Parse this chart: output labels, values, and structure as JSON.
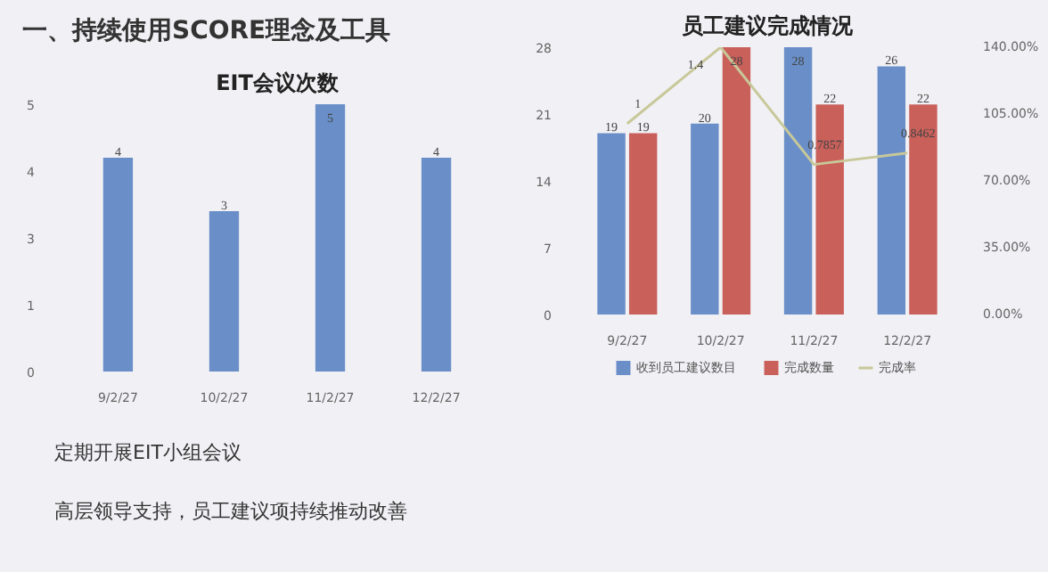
{
  "chart_data": [
    {
      "type": "bar",
      "title": "EIT会议次数",
      "categories": [
        "9/2/27",
        "10/2/27",
        "11/2/27",
        "12/2/27"
      ],
      "series": [
        {
          "color": "#6a8fc8",
          "values": [
            4,
            3,
            5,
            4
          ]
        }
      ],
      "ylim": [
        0,
        5
      ],
      "yticks": [
        0,
        {
          "value": 1.25,
          "label": "1"
        },
        {
          "value": 2.5,
          "label": "3"
        },
        {
          "value": 3.75,
          "label": "4"
        },
        5
      ],
      "data_labels": true,
      "grid": false,
      "legend": false,
      "annotations": [
        "一、持续使用SCORE理念及工具",
        "定期开展EIT小组会议",
        "高层领导支持，员工建议项持续推动改善"
      ]
    },
    {
      "type": "bar",
      "title": "员工建议完成情况",
      "categories": [
        "9/2/27",
        "10/2/27",
        "11/2/27",
        "12/2/27"
      ],
      "series": [
        {
          "name": "收到员工建议数目",
          "color": "#6a8fc8",
          "values": [
            19,
            20,
            28,
            26
          ]
        },
        {
          "name": "完成数量",
          "color": "#c9605a",
          "values": [
            19,
            28,
            22,
            22
          ]
        },
        {
          "name": "完成率",
          "type": "line",
          "axis": "y2",
          "color": "#c8c89a",
          "values": [
            1,
            1.4,
            0.7857,
            0.8462
          ]
        }
      ],
      "ylim": [
        0,
        28
      ],
      "yticks": [
        0,
        7,
        14,
        21,
        28
      ],
      "y2lim": [
        0,
        1.4
      ],
      "y2ticks": [
        {
          "value": 0,
          "label": "0.00%"
        },
        {
          "value": 0.35,
          "label": "35.00%"
        },
        {
          "value": 0.7,
          "label": "70.00%"
        },
        {
          "value": 1.05,
          "label": "105.00%"
        },
        {
          "value": 1.4,
          "label": "140.00%"
        }
      ],
      "data_labels": true,
      "grid": false,
      "legend": "bottom"
    }
  ]
}
